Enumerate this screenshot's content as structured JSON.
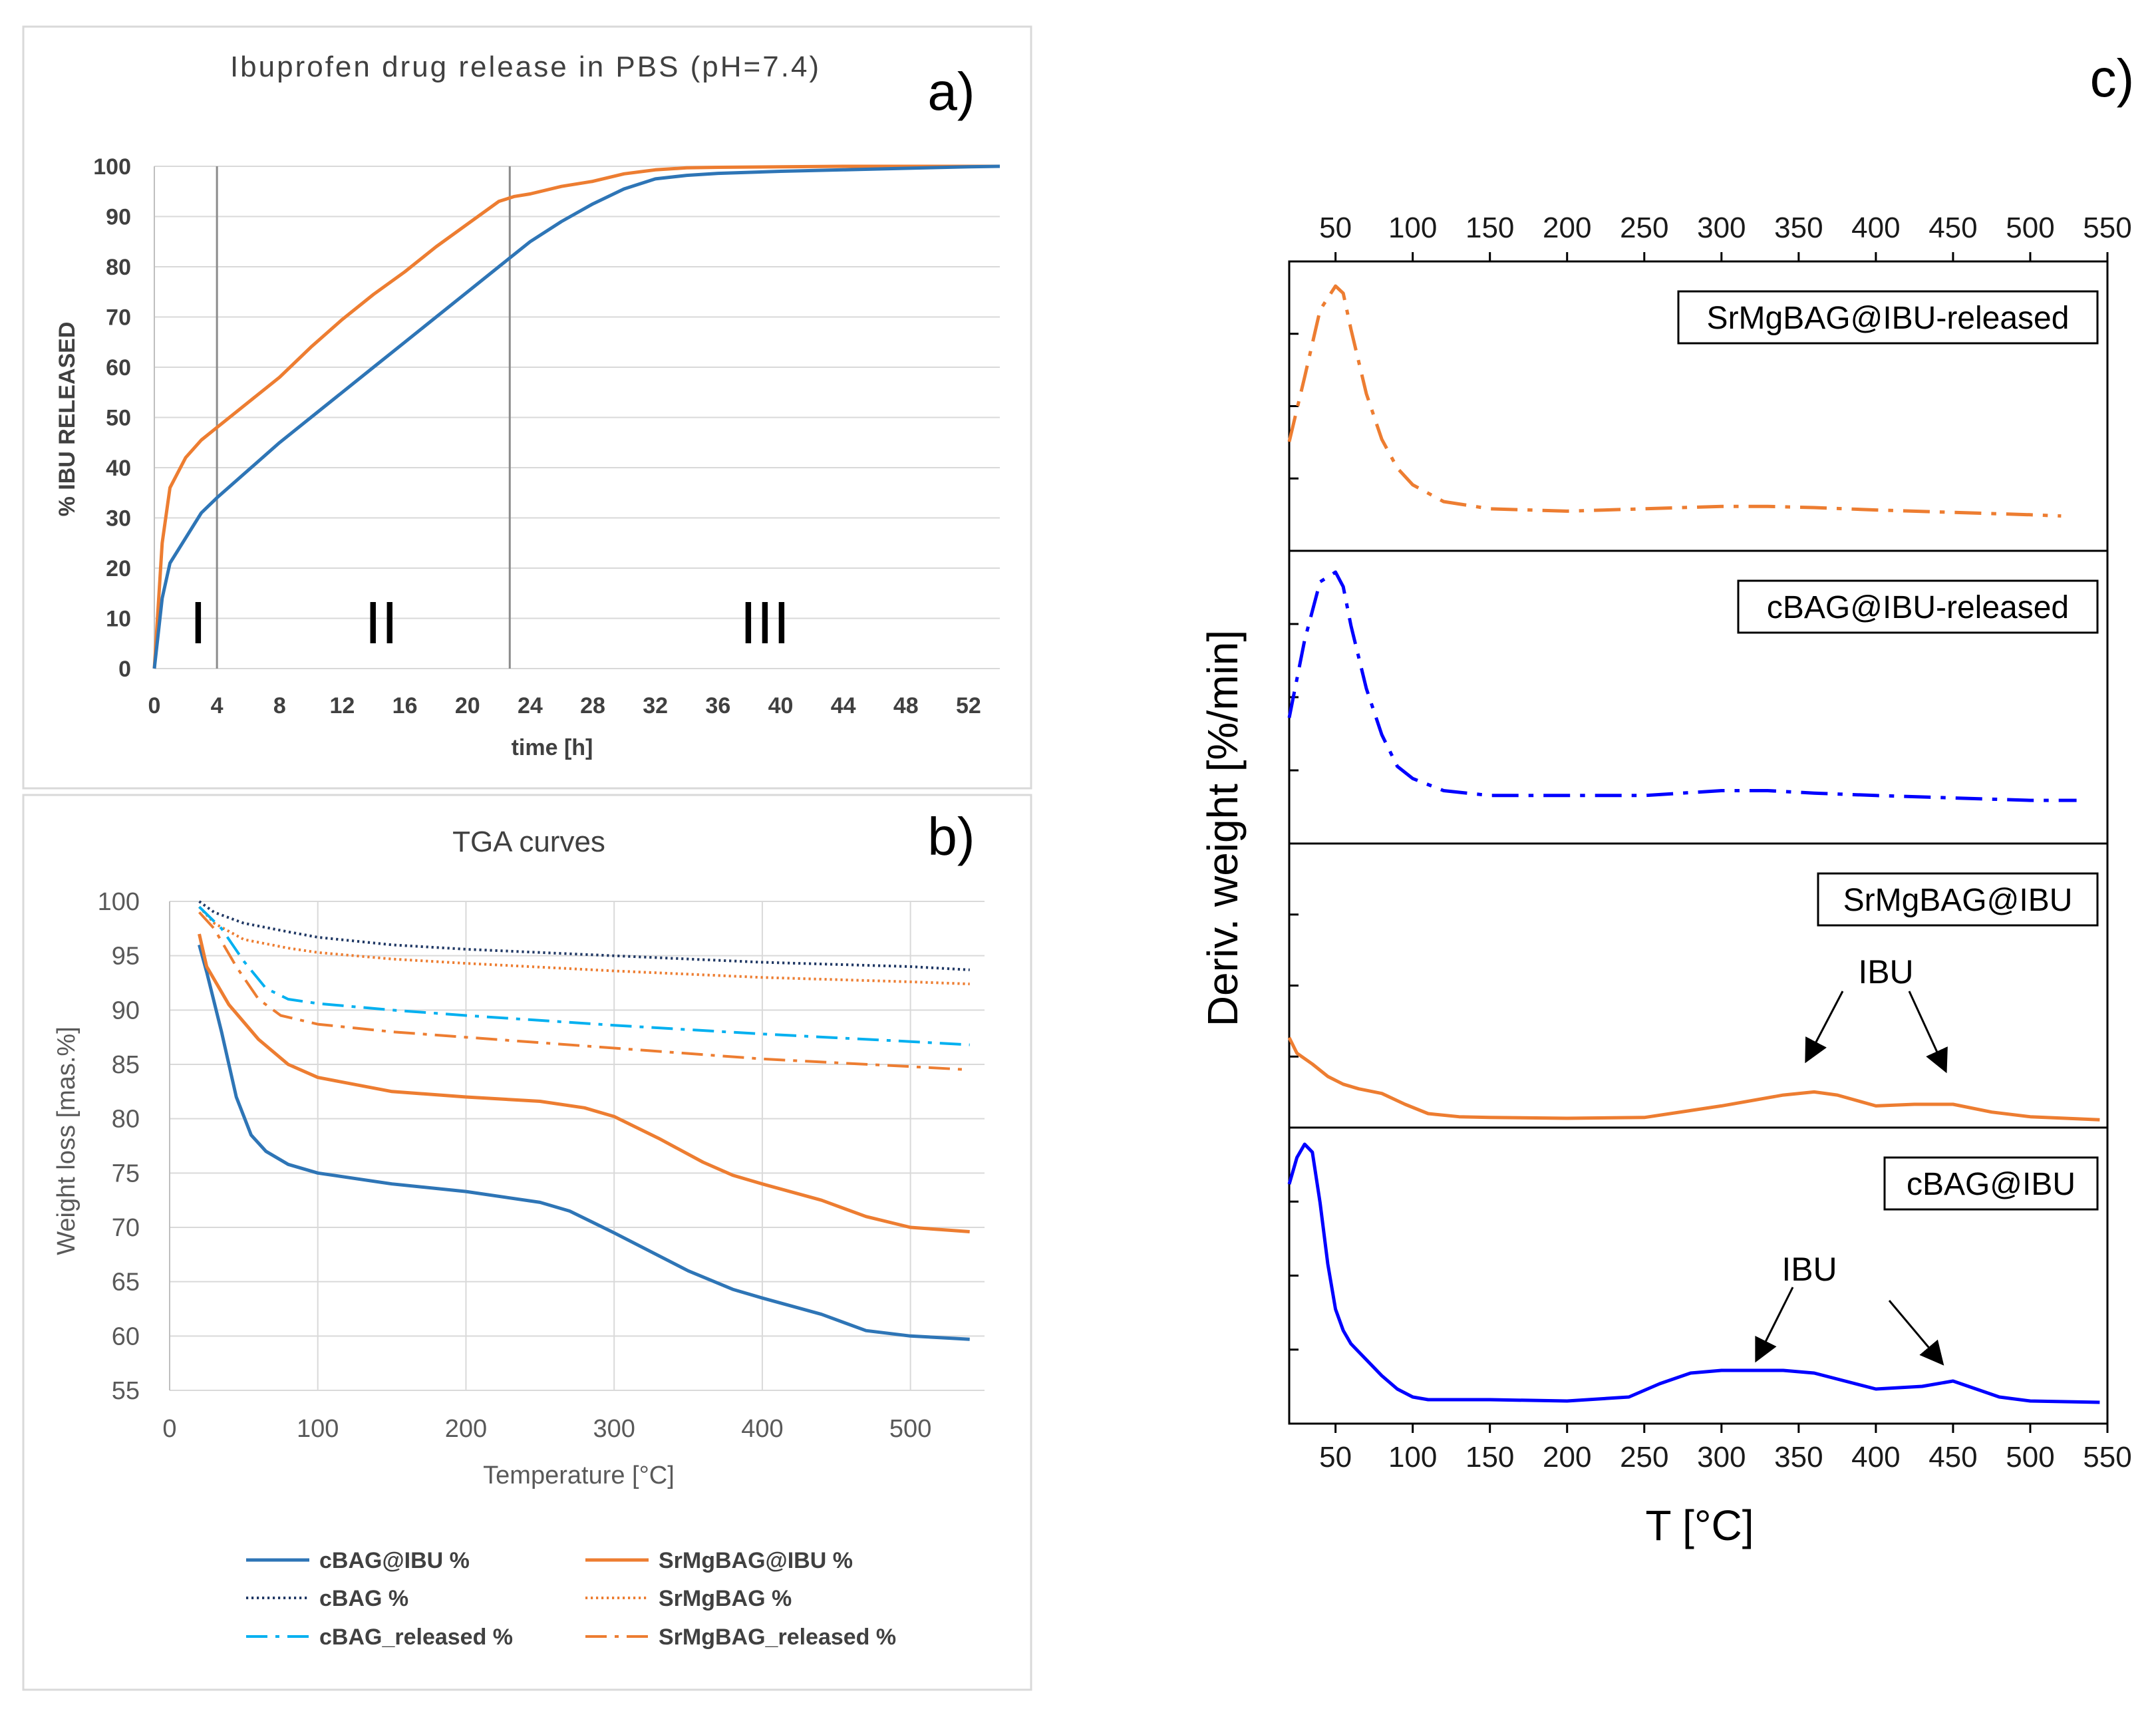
{
  "chart_data": [
    {
      "panel_label": "a)",
      "type": "line",
      "title": "Ibuprofen drug release in PBS (pH=7.4)",
      "xlabel": "time [h]",
      "ylabel": "% IBU RELEASED",
      "xlim": [
        0,
        54
      ],
      "ylim": [
        0,
        100
      ],
      "xticks": [
        0,
        4,
        8,
        12,
        16,
        20,
        24,
        28,
        32,
        36,
        40,
        44,
        48,
        52
      ],
      "yticks": [
        0,
        10,
        20,
        30,
        40,
        50,
        60,
        70,
        80,
        90,
        100
      ],
      "phase_boundaries": [
        4,
        22.7
      ],
      "phase_labels": [
        "I",
        "II",
        "III"
      ],
      "grid": true,
      "series": [
        {
          "name": "SrMgBAG@IBU",
          "color": "#ed7d31",
          "x": [
            0,
            0.5,
            1,
            2,
            3,
            4,
            6,
            8,
            10,
            12,
            14,
            16,
            18,
            20,
            22,
            23,
            24,
            26,
            28,
            30,
            32,
            34,
            36,
            40,
            44,
            48,
            52,
            54
          ],
          "y": [
            0,
            25,
            36,
            42,
            45.5,
            48,
            53,
            58,
            64,
            69.5,
            74.5,
            79,
            84,
            88.5,
            93,
            94,
            94.5,
            96,
            97,
            98.5,
            99.3,
            99.7,
            99.8,
            99.9,
            100,
            100,
            100,
            100
          ]
        },
        {
          "name": "cBAG@IBU",
          "color": "#2e75b6",
          "x": [
            0,
            0.5,
            1,
            2,
            3,
            4,
            6,
            8,
            10,
            12,
            14,
            16,
            18,
            20,
            22,
            24,
            26,
            28,
            30,
            32,
            34,
            36,
            40,
            44,
            48,
            52,
            54
          ],
          "y": [
            0,
            14,
            21,
            26,
            31,
            34,
            39.5,
            45,
            50,
            55,
            60,
            65,
            70,
            75,
            80,
            85,
            89,
            92.5,
            95.5,
            97.5,
            98.2,
            98.6,
            99,
            99.3,
            99.6,
            99.9,
            100
          ]
        }
      ]
    },
    {
      "panel_label": "b)",
      "type": "line",
      "title": "TGA curves",
      "xlabel": "Temperature [°C]",
      "ylabel": "Weight loss [mas.%]",
      "xlim": [
        0,
        550
      ],
      "ylim": [
        55,
        100
      ],
      "xticks": [
        0,
        100,
        200,
        300,
        400,
        500
      ],
      "yticks": [
        55,
        60,
        65,
        70,
        75,
        80,
        85,
        90,
        95,
        100
      ],
      "grid": true,
      "series": [
        {
          "name": "cBAG@IBU %",
          "color": "#2e75b6",
          "dash": "solid",
          "x": [
            20,
            25,
            35,
            45,
            55,
            65,
            80,
            100,
            150,
            200,
            250,
            270,
            300,
            350,
            380,
            400,
            440,
            470,
            500,
            540
          ],
          "y": [
            96,
            93.5,
            88,
            82,
            78.5,
            77,
            75.8,
            75,
            74,
            73.3,
            72.3,
            71.5,
            69.5,
            66,
            64.3,
            63.5,
            62,
            60.5,
            60,
            59.7
          ]
        },
        {
          "name": "SrMgBAG@IBU %",
          "color": "#ed7d31",
          "dash": "solid",
          "x": [
            20,
            25,
            40,
            60,
            80,
            100,
            150,
            200,
            250,
            280,
            300,
            330,
            360,
            380,
            400,
            440,
            470,
            500,
            540
          ],
          "y": [
            97,
            94,
            90.5,
            87.3,
            85,
            83.8,
            82.5,
            82,
            81.6,
            81,
            80.2,
            78.2,
            76,
            74.8,
            74,
            72.5,
            71,
            70,
            69.6
          ]
        },
        {
          "name": "cBAG %",
          "color": "#203864",
          "dash": "dot",
          "x": [
            20,
            30,
            50,
            80,
            100,
            150,
            200,
            300,
            400,
            500,
            540
          ],
          "y": [
            100,
            99,
            98,
            97.2,
            96.7,
            96,
            95.6,
            95,
            94.4,
            94,
            93.7
          ]
        },
        {
          "name": "SrMgBAG %",
          "color": "#ed7d31",
          "dash": "dot",
          "x": [
            20,
            30,
            50,
            80,
            100,
            150,
            200,
            300,
            400,
            500,
            540
          ],
          "y": [
            99.5,
            98,
            96.5,
            95.7,
            95.3,
            94.7,
            94.3,
            93.6,
            93,
            92.6,
            92.4
          ]
        },
        {
          "name": "cBAG_released %",
          "color": "#00b0f0",
          "dash": "dashdot",
          "x": [
            20,
            35,
            50,
            65,
            80,
            100,
            150,
            200,
            300,
            400,
            500,
            540
          ],
          "y": [
            99.5,
            97.5,
            94.5,
            92,
            91,
            90.6,
            90,
            89.5,
            88.6,
            87.8,
            87.1,
            86.8
          ]
        },
        {
          "name": "SrMgBAG_released %",
          "color": "#ed7d31",
          "dash": "dashdot",
          "x": [
            20,
            30,
            45,
            60,
            75,
            100,
            150,
            200,
            300,
            400,
            500,
            540
          ],
          "y": [
            99,
            97.5,
            94,
            91,
            89.5,
            88.7,
            88,
            87.5,
            86.5,
            85.5,
            84.8,
            84.5
          ]
        }
      ]
    },
    {
      "panel_label": "c)",
      "type": "line",
      "xlabel": "T [°C]",
      "ylabel": "Deriv. weight [%/min]",
      "xlim": [
        20,
        550
      ],
      "xticks": [
        50,
        100,
        150,
        200,
        250,
        300,
        350,
        400,
        450,
        500,
        550
      ],
      "grid": false,
      "series": [
        {
          "name": "SrMgBAG@IBU-released",
          "color": "#ed7d31",
          "dash": "dashdot",
          "x": [
            20,
            30,
            40,
            50,
            55,
            60,
            70,
            80,
            90,
            100,
            120,
            150,
            200,
            250,
            300,
            330,
            360,
            400,
            450,
            500,
            520
          ],
          "y": [
            0.35,
            0.62,
            0.9,
            1.0,
            0.97,
            0.82,
            0.55,
            0.36,
            0.24,
            0.17,
            0.1,
            0.07,
            0.06,
            0.07,
            0.08,
            0.08,
            0.075,
            0.065,
            0.055,
            0.045,
            0.04
          ]
        },
        {
          "name": "cBAG@IBU-released",
          "color": "#0000ff",
          "dash": "dashdot",
          "x": [
            20,
            30,
            40,
            50,
            55,
            60,
            70,
            80,
            90,
            100,
            120,
            150,
            200,
            250,
            300,
            330,
            360,
            400,
            450,
            500,
            530
          ],
          "y": [
            0.4,
            0.72,
            0.96,
            1.0,
            0.94,
            0.78,
            0.52,
            0.33,
            0.2,
            0.15,
            0.1,
            0.08,
            0.08,
            0.08,
            0.1,
            0.1,
            0.09,
            0.08,
            0.07,
            0.06,
            0.06
          ]
        },
        {
          "name": "SrMgBAG@IBU",
          "color": "#ed7d31",
          "dash": "solid",
          "x": [
            20,
            25,
            35,
            45,
            55,
            65,
            80,
            95,
            110,
            130,
            150,
            200,
            250,
            300,
            340,
            360,
            375,
            400,
            425,
            450,
            475,
            500,
            545
          ],
          "y": [
            0.55,
            0.45,
            0.38,
            0.3,
            0.25,
            0.22,
            0.19,
            0.12,
            0.06,
            0.04,
            0.035,
            0.03,
            0.035,
            0.11,
            0.18,
            0.2,
            0.18,
            0.11,
            0.12,
            0.12,
            0.07,
            0.04,
            0.02
          ]
        },
        {
          "name": "cBAG@IBU",
          "color": "#0000ff",
          "dash": "solid",
          "x": [
            20,
            25,
            30,
            35,
            40,
            45,
            50,
            55,
            60,
            70,
            80,
            90,
            100,
            110,
            150,
            200,
            240,
            260,
            280,
            300,
            340,
            360,
            380,
            400,
            430,
            450,
            460,
            480,
            500,
            545
          ],
          "y": [
            0.85,
            0.95,
            1.0,
            0.97,
            0.78,
            0.55,
            0.38,
            0.3,
            0.25,
            0.19,
            0.13,
            0.08,
            0.05,
            0.04,
            0.04,
            0.035,
            0.05,
            0.1,
            0.14,
            0.15,
            0.15,
            0.14,
            0.11,
            0.08,
            0.09,
            0.11,
            0.09,
            0.05,
            0.035,
            0.03
          ]
        }
      ],
      "annotations": [
        {
          "text": "IBU",
          "series": "SrMgBAG@IBU",
          "points_to": [
            360,
            450
          ]
        },
        {
          "text": "IBU",
          "series": "cBAG@IBU",
          "points_to": [
            300,
            450
          ]
        }
      ]
    }
  ]
}
